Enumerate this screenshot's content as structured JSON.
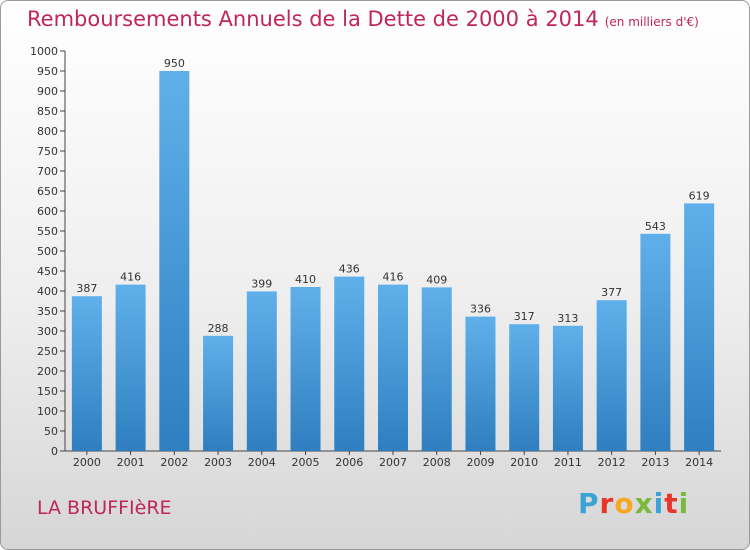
{
  "header": {
    "title": "Remboursements Annuels de la Dette de 2000 à 2014",
    "unit": "(en milliers d'€)"
  },
  "footer": {
    "commune": "LA BRUFFIèRE",
    "logo_text": "Proxiti"
  },
  "colors": {
    "accent": "#c0265a",
    "bar_top": "#5fb0ea",
    "bar_bottom": "#2f7fc0",
    "logo": [
      "#3aa3d6",
      "#e8352b",
      "#f7a823",
      "#79b93f",
      "#3aa3d6",
      "#e8352b",
      "#79b93f"
    ]
  },
  "chart_data": {
    "type": "bar",
    "title": "Remboursements Annuels de la Dette de 2000 à 2014",
    "subtitle": "(en milliers d'€)",
    "xlabel": "",
    "ylabel": "",
    "categories": [
      "2000",
      "2001",
      "2002",
      "2003",
      "2004",
      "2005",
      "2006",
      "2007",
      "2008",
      "2009",
      "2010",
      "2011",
      "2012",
      "2013",
      "2014"
    ],
    "values": [
      387,
      416,
      950,
      288,
      399,
      410,
      436,
      416,
      409,
      336,
      317,
      313,
      377,
      543,
      619
    ],
    "ylim": [
      0,
      1000
    ],
    "ytick_step": 50,
    "grid": false,
    "legend": "none"
  }
}
